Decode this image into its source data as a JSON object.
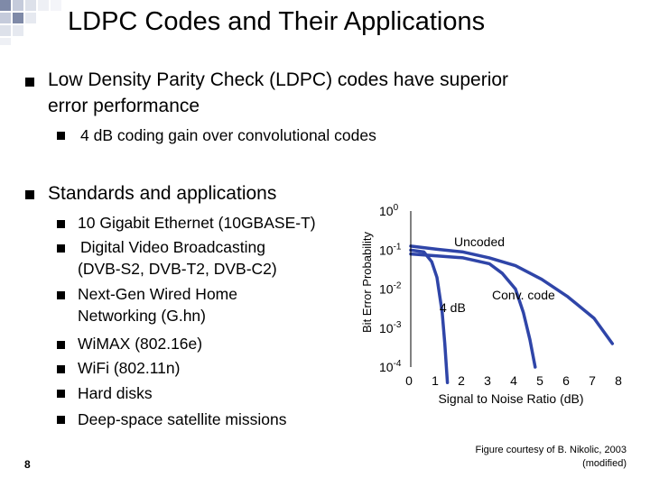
{
  "slide": {
    "title": "LDPC Codes and Their Applications",
    "page_number": "8",
    "bullets": [
      {
        "lines": [
          "Low Density Parity Check (LDPC) codes have superior",
          "error performance"
        ],
        "sub": [
          {
            "lines": [
              "4 dB coding gain over convolutional codes"
            ]
          }
        ]
      },
      {
        "lines": [
          "Standards and applications"
        ],
        "sub": [
          {
            "lines": [
              "10 Gigabit Ethernet (10GBASE-T)"
            ]
          },
          {
            "lines": [
              "Digital Video Broadcasting",
              "(DVB-S2, DVB-T2, DVB-C2)"
            ]
          },
          {
            "lines": [
              "Next-Gen Wired Home",
              "Networking (G.hn)"
            ]
          },
          {
            "lines": [
              "WiMAX (802.16e)"
            ]
          },
          {
            "lines": [
              "WiFi (802.11n)"
            ]
          },
          {
            "lines": [
              "Hard disks"
            ]
          },
          {
            "lines": [
              "Deep-space satellite missions"
            ]
          }
        ]
      }
    ],
    "credit_lines": [
      "Figure courtesy of B. Nikolic, 2003",
      "(modified)"
    ]
  },
  "colors": {
    "bullet": "#000000",
    "curve": "#2f45a8",
    "decoration": "#aeb6cc"
  },
  "chart_data": {
    "type": "line",
    "xlabel": "Signal to Noise Ratio (dB)",
    "ylabel": "Bit Error Probability",
    "xlim": [
      0,
      8
    ],
    "y_log_exponent_range": [
      0,
      -4
    ],
    "x_ticks": [
      "0",
      "1",
      "2",
      "3",
      "4",
      "5",
      "6",
      "7",
      "8"
    ],
    "y_ticks": [
      {
        "base": "10",
        "exp": "0"
      },
      {
        "base": "10",
        "exp": "-1"
      },
      {
        "base": "10",
        "exp": "-2"
      },
      {
        "base": "10",
        "exp": "-3"
      },
      {
        "base": "10",
        "exp": "-4"
      }
    ],
    "annotations": [
      "Uncoded",
      "Conv. code",
      "4 dB"
    ],
    "series": [
      {
        "x": [
          0.0,
          0.5,
          0.8,
          1.0,
          1.2,
          1.3,
          1.4
        ],
        "log10_y": [
          -1.0,
          -1.05,
          -1.3,
          -1.7,
          -2.6,
          -3.4,
          -4.4
        ]
      },
      {
        "x": [
          0.0,
          1.0,
          2.0,
          3.0,
          3.5,
          4.0,
          4.3,
          4.55,
          4.75
        ],
        "log10_y": [
          -1.1,
          -1.15,
          -1.2,
          -1.35,
          -1.6,
          -2.0,
          -2.6,
          -3.3,
          -4.0
        ]
      },
      {
        "x": [
          0.0,
          1.0,
          2.0,
          3.0,
          4.0,
          5.0,
          6.0,
          7.0,
          7.7
        ],
        "log10_y": [
          -0.9,
          -0.98,
          -1.05,
          -1.2,
          -1.4,
          -1.75,
          -2.2,
          -2.75,
          -3.4
        ]
      }
    ]
  }
}
